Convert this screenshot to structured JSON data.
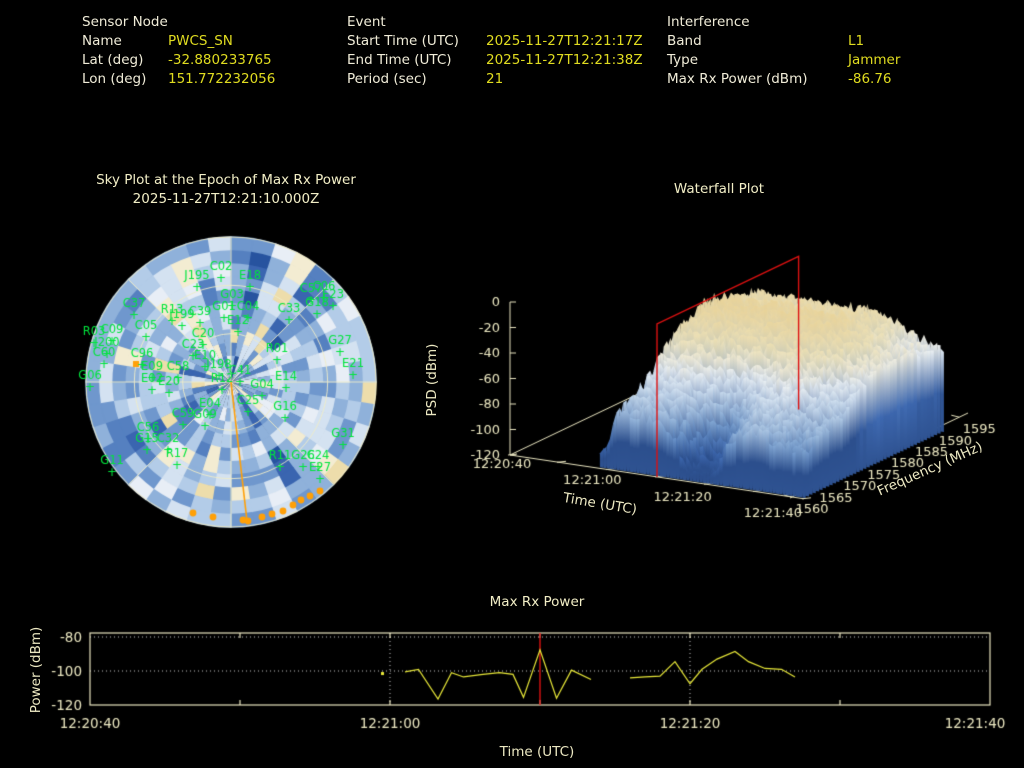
{
  "header": {
    "sensor": {
      "title": "Sensor Node",
      "rows": [
        {
          "label": "Name",
          "value": "PWCS_SN"
        },
        {
          "label": "Lat (deg)",
          "value": "-32.880233765"
        },
        {
          "label": "Lon (deg)",
          "value": "151.772232056"
        }
      ]
    },
    "event": {
      "title": "Event",
      "rows": [
        {
          "label": "Start Time (UTC)",
          "value": "2025-11-27T12:21:17Z"
        },
        {
          "label": "End Time (UTC)",
          "value": "2025-11-27T12:21:38Z"
        },
        {
          "label": "Period (sec)",
          "value": "21"
        }
      ]
    },
    "interference": {
      "title": "Interference",
      "rows": [
        {
          "label": "Band",
          "value": "L1"
        },
        {
          "label": "Type",
          "value": "Jammer"
        },
        {
          "label": "Max Rx Power (dBm)",
          "value": "-86.76"
        }
      ]
    }
  },
  "colors": {
    "background": "#000000",
    "label_cream": "#f0ecd8",
    "value_yellow": "#e0dc20",
    "title_cream": "#f2eec6",
    "tick_cream": "#ece8c2",
    "axis_cream": "#e9e5c0",
    "satellite_green": "#00e53c",
    "track_orange": "#ffa008",
    "epoch_red": "#dd1111",
    "series_yellow": "#e8e838"
  },
  "chart_data": [
    {
      "type": "heatmap",
      "subtype": "polar-sky-plot",
      "title": "Sky Plot at the Epoch of Max Rx Power",
      "subtitle": "2025-11-27T12:21:10.000Z",
      "rings_elevation_deg": [
        0,
        30,
        60
      ],
      "spoke_step_deg": 45,
      "palette": [
        "#27539f",
        "#3a65b0",
        "#5580c0",
        "#6f97cd",
        "#8fb1da",
        "#b3cce8",
        "#d4e2f1",
        "#e8eef6",
        "#f3ecd2",
        "#edddab"
      ],
      "satellites": [
        {
          "id": "C02",
          "x": -10,
          "y": -116
        },
        {
          "id": "J195",
          "x": -34,
          "y": -107
        },
        {
          "id": "E18",
          "x": 19,
          "y": -107
        },
        {
          "id": "C37",
          "x": -97,
          "y": -79
        },
        {
          "id": "C57",
          "x": 80,
          "y": -94
        },
        {
          "id": "C06",
          "x": 93,
          "y": -96
        },
        {
          "id": "E23",
          "x": 102,
          "y": -88
        },
        {
          "id": "G18",
          "x": 86,
          "y": -80
        },
        {
          "id": "G03",
          "x": 1,
          "y": -88
        },
        {
          "id": "C33",
          "x": 58,
          "y": -74
        },
        {
          "id": "R03",
          "x": -137,
          "y": -51
        },
        {
          "id": "C09",
          "x": -119,
          "y": -53
        },
        {
          "id": "J200",
          "x": -124,
          "y": -40
        },
        {
          "id": "C05",
          "x": -85,
          "y": -57
        },
        {
          "id": "R13",
          "x": -59,
          "y": -73
        },
        {
          "id": "J199",
          "x": -49,
          "y": -68
        },
        {
          "id": "C39",
          "x": -31,
          "y": -71
        },
        {
          "id": "G01",
          "x": -7,
          "y": -76
        },
        {
          "id": "C04",
          "x": 17,
          "y": -76
        },
        {
          "id": "E12",
          "x": 7,
          "y": -62
        },
        {
          "id": "C20",
          "x": -28,
          "y": -49
        },
        {
          "id": "C23",
          "x": -38,
          "y": -38
        },
        {
          "id": "C60",
          "x": -127,
          "y": -30
        },
        {
          "id": "C96",
          "x": -89,
          "y": -29
        },
        {
          "id": "E09",
          "x": -79,
          "y": -16
        },
        {
          "id": "C58",
          "x": -53,
          "y": -16
        },
        {
          "id": "E02",
          "x": -79,
          "y": -4
        },
        {
          "id": "E20",
          "x": -62,
          "y": -1
        },
        {
          "id": "G06",
          "x": -141,
          "y": -7
        },
        {
          "id": "E10",
          "x": -26,
          "y": -27
        },
        {
          "id": "J198",
          "x": -12,
          "y": -18
        },
        {
          "id": "C41",
          "x": 9,
          "y": -12
        },
        {
          "id": "R12",
          "x": -9,
          "y": -4
        },
        {
          "id": "R01",
          "x": 46,
          "y": -34
        },
        {
          "id": "E14",
          "x": 55,
          "y": -6
        },
        {
          "id": "G04",
          "x": 31,
          "y": 2
        },
        {
          "id": "G27",
          "x": 109,
          "y": -42
        },
        {
          "id": "E21",
          "x": 122,
          "y": -19
        },
        {
          "id": "C25",
          "x": 17,
          "y": 18
        },
        {
          "id": "G16",
          "x": 54,
          "y": 24
        },
        {
          "id": "E04",
          "x": -21,
          "y": 21
        },
        {
          "id": "C59",
          "x": -48,
          "y": 31
        },
        {
          "id": "G09",
          "x": -26,
          "y": 32
        },
        {
          "id": "C56",
          "x": -83,
          "y": 45
        },
        {
          "id": "G15",
          "x": -84,
          "y": 56
        },
        {
          "id": "C32",
          "x": -63,
          "y": 56
        },
        {
          "id": "R17",
          "x": -54,
          "y": 71
        },
        {
          "id": "G11",
          "x": -119,
          "y": 78
        },
        {
          "id": "R11",
          "x": 49,
          "y": 73
        },
        {
          "id": "G26",
          "x": 72,
          "y": 73
        },
        {
          "id": "C24",
          "x": 87,
          "y": 73
        },
        {
          "id": "E27",
          "x": 89,
          "y": 85
        },
        {
          "id": "G31",
          "x": 112,
          "y": 51
        }
      ],
      "orange_track_dots": [
        [
          -38,
          131
        ],
        [
          -18,
          135
        ],
        [
          12,
          138
        ],
        [
          17,
          139
        ],
        [
          31,
          135
        ],
        [
          41,
          132
        ],
        [
          52,
          129
        ],
        [
          62,
          123
        ],
        [
          70,
          118
        ],
        [
          79,
          114
        ],
        [
          89,
          109
        ]
      ],
      "orange_bearing_line_end": [
        16,
        139
      ],
      "orange_point": [
        -95,
        -18
      ]
    },
    {
      "type": "heatmap",
      "subtype": "3d-surface-waterfall",
      "title": "Waterfall Plot",
      "zlabel": "PSD (dBm)",
      "xlabel": "Time (UTC)",
      "ylabel": "Frequency (MHz)",
      "z_ticks": [
        "0",
        "-20",
        "-40",
        "-60",
        "-80",
        "-100",
        "-120"
      ],
      "zlim": [
        -120,
        0
      ],
      "time_ticks": [
        "12:20:40",
        "12:21:00",
        "12:21:20",
        "12:21:40"
      ],
      "time_range_s": [
        0,
        60
      ],
      "freq_ticks": [
        "1560",
        "1565",
        "1570",
        "1575",
        "1580",
        "1585",
        "1590",
        "1595"
      ],
      "freq_range_mhz": [
        1560.4,
        1590.4
      ],
      "event_window_s": [
        18,
        60
      ],
      "epoch_slice_time_s": 30,
      "epoch_slice_label": "12:21:10"
    },
    {
      "type": "line",
      "title": "Max Rx Power",
      "xlabel": "Time (UTC)",
      "ylabel": "Power (dBm)",
      "y_ticks": [
        "-80",
        "-100",
        "-120"
      ],
      "y_tick_values": [
        -80,
        -100,
        -120
      ],
      "ylim": [
        -120,
        -77.5
      ],
      "x_ticks": [
        "12:20:40",
        "12:21:00",
        "12:21:20",
        "12:21:40"
      ],
      "x_tick_values_s": [
        0,
        20,
        40,
        60
      ],
      "x_range_s": [
        0,
        60
      ],
      "grid": "dotted",
      "epoch_line_s": 30,
      "series": [
        {
          "name": "max_rx_power_dbm",
          "segments": [
            [
              [
                19.5,
                -101.5
              ]
            ],
            [
              [
                21,
                -100.5
              ],
              [
                21.9,
                -99
              ],
              [
                23.2,
                -116.5
              ],
              [
                24.1,
                -101
              ],
              [
                24.9,
                -103.5
              ],
              [
                26.2,
                -102
              ],
              [
                27.3,
                -101
              ],
              [
                28.2,
                -102
              ],
              [
                28.9,
                -115.5
              ],
              [
                30,
                -87.5
              ],
              [
                31.1,
                -116
              ],
              [
                32.1,
                -99.5
              ],
              [
                33.4,
                -105
              ]
            ],
            [
              [
                36,
                -104
              ],
              [
                37,
                -103.5
              ],
              [
                38,
                -103
              ],
              [
                39,
                -94.5
              ],
              [
                40,
                -107.5
              ],
              [
                40.8,
                -99
              ],
              [
                41.8,
                -93
              ],
              [
                43,
                -88.5
              ],
              [
                43.9,
                -94.5
              ],
              [
                45,
                -98.5
              ],
              [
                46.1,
                -99
              ],
              [
                47,
                -103.5
              ]
            ]
          ]
        }
      ]
    }
  ]
}
